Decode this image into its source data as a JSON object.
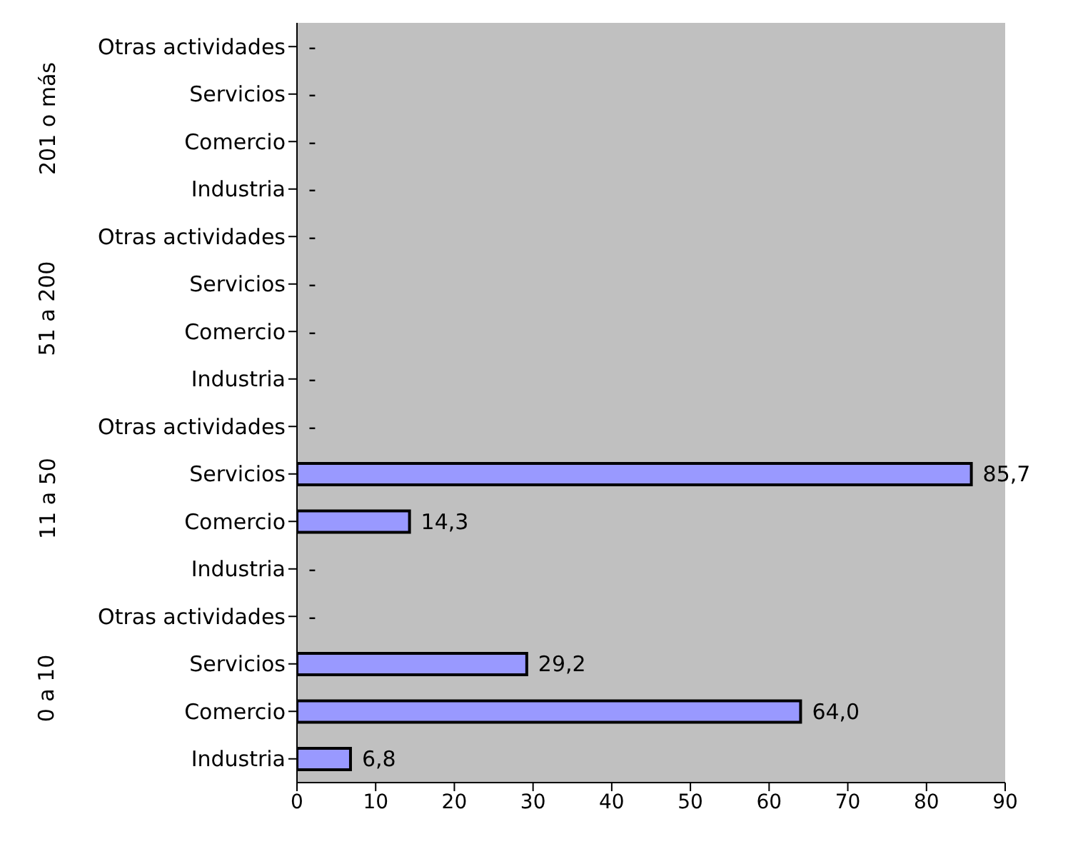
{
  "chart_data": {
    "type": "bar",
    "orientation": "horizontal",
    "categories": [
      "Otras actividades",
      "Servicios",
      "Comercio",
      "Industria",
      "Otras actividades",
      "Servicios",
      "Comercio",
      "Industria",
      "Otras actividades",
      "Servicios",
      "Comercio",
      "Industria",
      "Otras actividades",
      "Servicios",
      "Comercio",
      "Industria"
    ],
    "values": [
      null,
      null,
      null,
      null,
      null,
      null,
      null,
      null,
      null,
      85.7,
      14.3,
      null,
      null,
      29.2,
      64.0,
      6.8
    ],
    "value_labels": [
      "-",
      "-",
      "-",
      "-",
      "-",
      "-",
      "-",
      "-",
      "-",
      "85,7",
      "14,3",
      "-",
      "-",
      "29,2",
      "64,0",
      "6,8"
    ],
    "annotations": [
      "201 o más",
      "51 a 200",
      "11 a 50",
      "0 a 10"
    ],
    "color": "#9999ff",
    "xlim": [
      0,
      90
    ],
    "xticks": [
      0,
      10,
      20,
      30,
      40,
      50,
      60,
      70,
      80,
      90
    ],
    "grid": false
  }
}
